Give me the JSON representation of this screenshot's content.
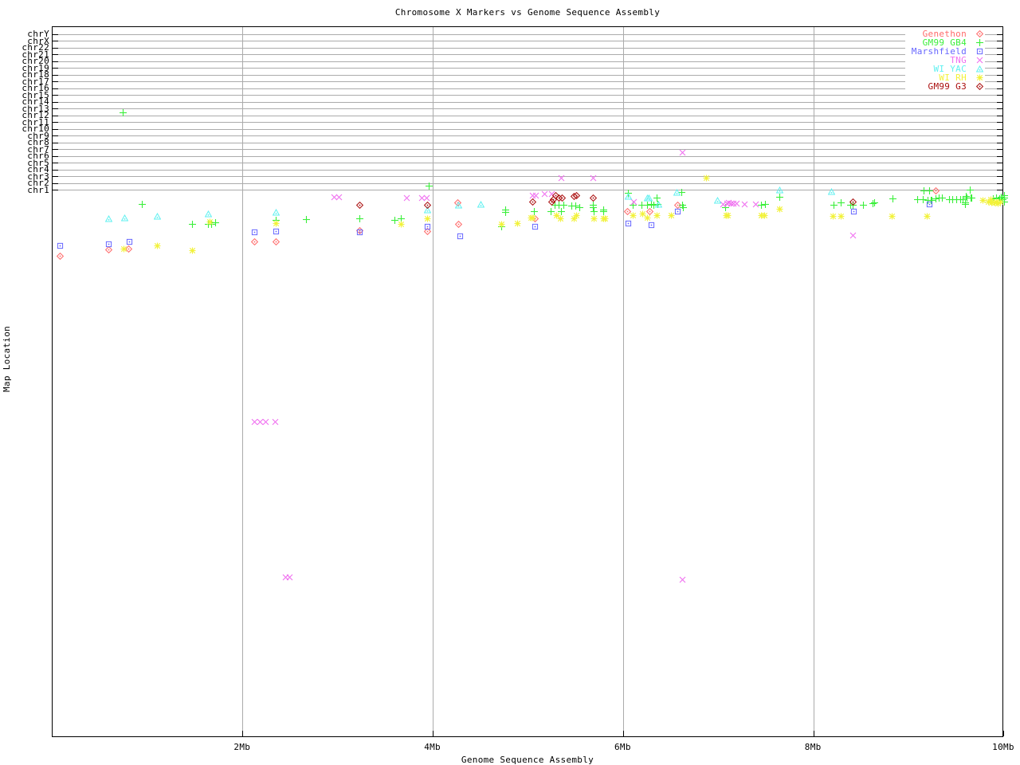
{
  "chart_data": {
    "type": "scatter",
    "title": "Chromosome X Markers vs Genome Sequence Assembly",
    "xlabel": "Genome Sequence Assembly",
    "ylabel": "Map Location",
    "grid": true,
    "grid_color": "#ababab",
    "axis_color": "#000000",
    "legend_position": "top-right-inside",
    "xlim_mb": [
      0,
      10
    ],
    "x_ticks": [
      {
        "label": "2Mb",
        "mb": 2
      },
      {
        "label": "4Mb",
        "mb": 4
      },
      {
        "label": "6Mb",
        "mb": 6
      },
      {
        "label": "8Mb",
        "mb": 8
      },
      {
        "label": "10Mb",
        "mb": 10
      }
    ],
    "y_rows": [
      "chrY",
      "chrX",
      "chr22",
      "chr21",
      "chr20",
      "chr19",
      "chr18",
      "chr17",
      "chr16",
      "chr15",
      "chr14",
      "chr13",
      "chr12",
      "chr11",
      "chr10",
      "chr9",
      "chr8",
      "chr7",
      "chr6",
      "chr5",
      "chr4",
      "chr3",
      "chr2",
      "chr1"
    ],
    "y_note": "Top band shows one gridline row per chromosome (chrY at top to chr1); below chr1 the axis is continuous unlabeled map location. Point y values are given as fraction of full plot height from the top.",
    "series": [
      {
        "name": "Genethon",
        "marker": "diamond-dot",
        "color": "#ff6a6a",
        "points": [
          [
            0.08,
            0.322
          ],
          [
            0.59,
            0.313
          ],
          [
            0.8,
            0.312
          ],
          [
            2.12,
            0.302
          ],
          [
            2.35,
            0.302
          ],
          [
            3.23,
            0.286
          ],
          [
            3.94,
            0.287
          ],
          [
            4.26,
            0.247
          ],
          [
            4.27,
            0.277
          ],
          [
            5.07,
            0.27
          ],
          [
            6.04,
            0.26
          ],
          [
            6.28,
            0.26
          ],
          [
            6.57,
            0.251
          ],
          [
            9.28,
            0.23
          ]
        ]
      },
      {
        "name": "GM99 GB4",
        "marker": "plus",
        "color": "#3bef3b",
        "points": [
          [
            0.74,
            0.12
          ],
          [
            0.94,
            0.249
          ],
          [
            1.47,
            0.278
          ],
          [
            1.64,
            0.278
          ],
          [
            1.67,
            0.278
          ],
          [
            1.71,
            0.275
          ],
          [
            2.35,
            0.272
          ],
          [
            2.67,
            0.271
          ],
          [
            3.23,
            0.27
          ],
          [
            3.6,
            0.272
          ],
          [
            3.66,
            0.27
          ],
          [
            3.96,
            0.224
          ],
          [
            4.72,
            0.281
          ],
          [
            4.76,
            0.257
          ],
          [
            4.76,
            0.261
          ],
          [
            5.06,
            0.26
          ],
          [
            5.24,
            0.259
          ],
          [
            5.28,
            0.251
          ],
          [
            5.32,
            0.251
          ],
          [
            5.35,
            0.259
          ],
          [
            5.37,
            0.25
          ],
          [
            5.46,
            0.252
          ],
          [
            5.5,
            0.252
          ],
          [
            5.54,
            0.254
          ],
          [
            5.68,
            0.25
          ],
          [
            5.68,
            0.254
          ],
          [
            5.69,
            0.259
          ],
          [
            5.79,
            0.257
          ],
          [
            5.79,
            0.26
          ],
          [
            6.05,
            0.234
          ],
          [
            6.1,
            0.25
          ],
          [
            6.19,
            0.251
          ],
          [
            6.25,
            0.251
          ],
          [
            6.29,
            0.249
          ],
          [
            6.32,
            0.25
          ],
          [
            6.35,
            0.24
          ],
          [
            6.36,
            0.249
          ],
          [
            6.61,
            0.233
          ],
          [
            6.62,
            0.251
          ],
          [
            6.63,
            0.254
          ],
          [
            7.07,
            0.254
          ],
          [
            7.45,
            0.25
          ],
          [
            7.49,
            0.249
          ],
          [
            7.64,
            0.239
          ],
          [
            8.21,
            0.251
          ],
          [
            8.29,
            0.247
          ],
          [
            8.39,
            0.25
          ],
          [
            8.41,
            0.25
          ],
          [
            8.52,
            0.251
          ],
          [
            8.62,
            0.248
          ],
          [
            8.64,
            0.247
          ],
          [
            8.83,
            0.242
          ],
          [
            9.09,
            0.243
          ],
          [
            9.15,
            0.243
          ],
          [
            9.16,
            0.23
          ],
          [
            9.2,
            0.244
          ],
          [
            9.22,
            0.23
          ],
          [
            9.23,
            0.244
          ],
          [
            9.24,
            0.244
          ],
          [
            9.28,
            0.242
          ],
          [
            9.32,
            0.24
          ],
          [
            9.35,
            0.241
          ],
          [
            9.43,
            0.243
          ],
          [
            9.46,
            0.243
          ],
          [
            9.5,
            0.243
          ],
          [
            9.54,
            0.243
          ],
          [
            9.57,
            0.243
          ],
          [
            9.59,
            0.247
          ],
          [
            9.59,
            0.249
          ],
          [
            9.6,
            0.238
          ],
          [
            9.61,
            0.241
          ],
          [
            9.64,
            0.229
          ],
          [
            9.65,
            0.24
          ],
          [
            9.66,
            0.24
          ],
          [
            9.89,
            0.242
          ],
          [
            9.92,
            0.24
          ],
          [
            9.95,
            0.242
          ],
          [
            9.97,
            0.239
          ],
          [
            9.99,
            0.243
          ],
          [
            10.0,
            0.241
          ],
          [
            10.0,
            0.246
          ],
          [
            10.0,
            0.237
          ]
        ]
      },
      {
        "name": "Marshfield",
        "marker": "square-dot",
        "color": "#6666ff",
        "points": [
          [
            0.08,
            0.308
          ],
          [
            0.59,
            0.306
          ],
          [
            0.81,
            0.302
          ],
          [
            2.12,
            0.289
          ],
          [
            2.35,
            0.288
          ],
          [
            3.23,
            0.289
          ],
          [
            3.94,
            0.281
          ],
          [
            4.28,
            0.294
          ],
          [
            5.07,
            0.281
          ],
          [
            6.05,
            0.276
          ],
          [
            6.29,
            0.279
          ],
          [
            6.57,
            0.26
          ],
          [
            8.42,
            0.26
          ],
          [
            9.22,
            0.249
          ]
        ]
      },
      {
        "name": "TNG",
        "marker": "cross",
        "color": "#f070f0",
        "points": [
          [
            2.96,
            0.239
          ],
          [
            3.01,
            0.239
          ],
          [
            3.72,
            0.241
          ],
          [
            3.88,
            0.24
          ],
          [
            3.93,
            0.24
          ],
          [
            5.05,
            0.237
          ],
          [
            5.08,
            0.237
          ],
          [
            5.17,
            0.235
          ],
          [
            5.25,
            0.235
          ],
          [
            5.35,
            0.213
          ],
          [
            5.68,
            0.213
          ],
          [
            6.11,
            0.246
          ],
          [
            6.62,
            0.177
          ],
          [
            7.05,
            0.249
          ],
          [
            7.09,
            0.248
          ],
          [
            7.11,
            0.247
          ],
          [
            7.13,
            0.248
          ],
          [
            7.16,
            0.248
          ],
          [
            7.19,
            0.248
          ],
          [
            7.27,
            0.249
          ],
          [
            7.39,
            0.249
          ],
          [
            8.41,
            0.293
          ],
          [
            2.12,
            0.556
          ],
          [
            2.18,
            0.556
          ],
          [
            2.24,
            0.556
          ],
          [
            2.34,
            0.556
          ],
          [
            2.45,
            0.774
          ],
          [
            2.49,
            0.774
          ],
          [
            6.62,
            0.777
          ]
        ]
      },
      {
        "name": "WI YAC",
        "marker": "triangle-dot",
        "color": "#5ff0f0",
        "points": [
          [
            0.59,
            0.27
          ],
          [
            0.76,
            0.269
          ],
          [
            1.1,
            0.266
          ],
          [
            1.64,
            0.263
          ],
          [
            2.35,
            0.261
          ],
          [
            3.94,
            0.257
          ],
          [
            4.27,
            0.251
          ],
          [
            4.5,
            0.249
          ],
          [
            6.05,
            0.238
          ],
          [
            6.25,
            0.24
          ],
          [
            6.27,
            0.241
          ],
          [
            6.37,
            0.249
          ],
          [
            6.56,
            0.233
          ],
          [
            6.99,
            0.244
          ],
          [
            7.64,
            0.229
          ],
          [
            8.19,
            0.231
          ]
        ]
      },
      {
        "name": "WI RH",
        "marker": "asterisk",
        "color": "#f2f23a",
        "points": [
          [
            0.75,
            0.312
          ],
          [
            1.1,
            0.308
          ],
          [
            1.47,
            0.315
          ],
          [
            1.65,
            0.274
          ],
          [
            2.35,
            0.276
          ],
          [
            3.66,
            0.277
          ],
          [
            3.94,
            0.27
          ],
          [
            4.72,
            0.277
          ],
          [
            4.89,
            0.276
          ],
          [
            5.03,
            0.269
          ],
          [
            5.05,
            0.269
          ],
          [
            5.3,
            0.265
          ],
          [
            5.34,
            0.27
          ],
          [
            5.48,
            0.27
          ],
          [
            5.51,
            0.265
          ],
          [
            5.69,
            0.27
          ],
          [
            5.79,
            0.27
          ],
          [
            5.81,
            0.27
          ],
          [
            6.1,
            0.265
          ],
          [
            6.2,
            0.263
          ],
          [
            6.25,
            0.268
          ],
          [
            6.35,
            0.265
          ],
          [
            6.5,
            0.265
          ],
          [
            6.87,
            0.213
          ],
          [
            7.08,
            0.265
          ],
          [
            7.1,
            0.265
          ],
          [
            7.45,
            0.265
          ],
          [
            7.48,
            0.265
          ],
          [
            7.64,
            0.256
          ],
          [
            8.2,
            0.266
          ],
          [
            8.29,
            0.266
          ],
          [
            8.82,
            0.266
          ],
          [
            9.19,
            0.266
          ],
          [
            9.78,
            0.244
          ],
          [
            9.84,
            0.246
          ],
          [
            9.86,
            0.243
          ],
          [
            9.87,
            0.247
          ],
          [
            9.9,
            0.247
          ],
          [
            9.92,
            0.246
          ],
          [
            9.94,
            0.248
          ],
          [
            9.96,
            0.246
          ]
        ]
      },
      {
        "name": "GM99 G3",
        "marker": "diamond-dot",
        "color": "#aa0f0f",
        "points": [
          [
            3.23,
            0.251
          ],
          [
            3.94,
            0.25
          ],
          [
            5.05,
            0.246
          ],
          [
            5.25,
            0.246
          ],
          [
            5.26,
            0.243
          ],
          [
            5.29,
            0.237
          ],
          [
            5.32,
            0.24
          ],
          [
            5.36,
            0.241
          ],
          [
            5.48,
            0.238
          ],
          [
            5.51,
            0.237
          ],
          [
            5.68,
            0.241
          ],
          [
            8.41,
            0.246
          ]
        ]
      }
    ]
  }
}
